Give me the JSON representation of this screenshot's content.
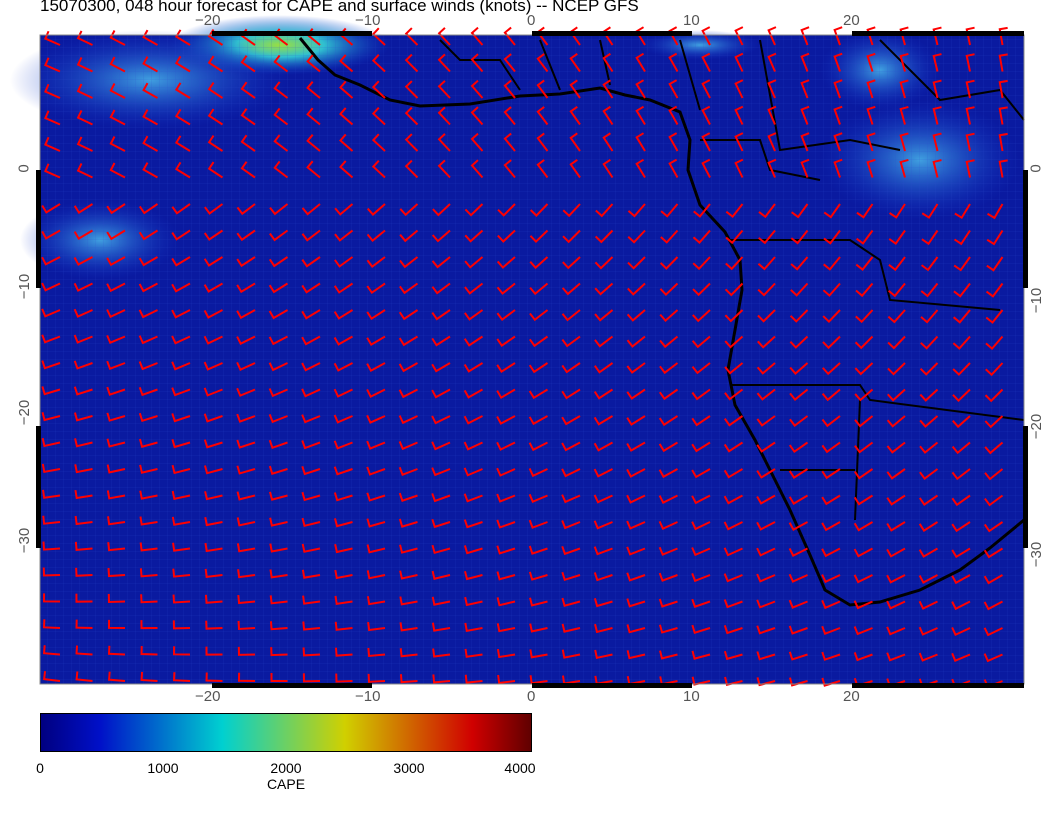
{
  "title": "15070300, 048 hour forecast for CAPE and surface winds (knots) -- NCEP GFS",
  "map": {
    "variable": "CAPE",
    "overlay": "surface wind barbs (knots)",
    "barb_color": "#ff0000",
    "coastline_color": "#000000",
    "lon_ticks": [
      "−20",
      "−10",
      "0",
      "10",
      "20"
    ],
    "lat_ticks": [
      "0",
      "−10",
      "−20",
      "−30"
    ],
    "lon_range": [
      -31,
      31
    ],
    "lat_range": [
      -40,
      9
    ]
  },
  "colorbar": {
    "label": "CAPE",
    "ticks": [
      "0",
      "1000",
      "2000",
      "3000",
      "4000"
    ],
    "range": [
      0,
      4000
    ],
    "colors": [
      "#000080",
      "#0010c8",
      "#00d0d0",
      "#d0d000",
      "#d00000",
      "#600000"
    ]
  }
}
